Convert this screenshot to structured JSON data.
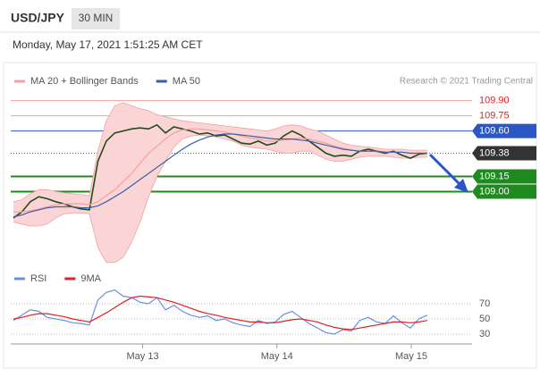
{
  "header": {
    "symbol": "USD/JPY",
    "timeframe": "30 MIN",
    "timestamp": "Monday, May 17, 2021 1:51:25 AM CET"
  },
  "chart_data": [
    {
      "type": "line",
      "credit": "Research © 2021 Trading Central",
      "xlim": [
        -0.32,
        54.3
      ],
      "xticks": [
        {
          "value": 15.3,
          "label": "May 13"
        },
        {
          "value": 31.2,
          "label": "May 14"
        },
        {
          "value": 47.1,
          "label": "May 15"
        }
      ],
      "ylim": [
        108.36,
        110.02
      ],
      "series": [
        {
          "color": "#1e4d1e",
          "values": [
            108.74,
            108.8,
            108.9,
            108.95,
            108.93,
            108.9,
            108.88,
            108.85,
            108.83,
            108.82,
            109.3,
            109.5,
            109.58,
            109.6,
            109.62,
            109.63,
            109.62,
            109.66,
            109.58,
            109.64,
            109.62,
            109.6,
            109.57,
            109.58,
            109.55,
            109.56,
            109.52,
            109.48,
            109.47,
            109.5,
            109.46,
            109.48,
            109.55,
            109.6,
            109.56,
            109.5,
            109.44,
            109.38,
            109.35,
            109.36,
            109.35,
            109.4,
            109.42,
            109.4,
            109.38,
            109.4,
            109.36,
            109.33,
            109.37,
            109.38
          ]
        },
        {
          "name": "MA 20 + Bollinger Bands",
          "color": "#f4a0a0",
          "band_color": "#fbd5d5",
          "values": [
            108.8,
            108.8,
            108.81,
            108.83,
            108.85,
            108.87,
            108.88,
            108.88,
            108.88,
            108.87,
            108.9,
            108.96,
            109.02,
            109.1,
            109.18,
            109.28,
            109.38,
            109.45,
            109.52,
            109.58,
            109.61,
            109.62,
            109.62,
            109.61,
            109.6,
            109.59,
            109.57,
            109.55,
            109.53,
            109.52,
            109.5,
            109.5,
            109.51,
            109.52,
            109.53,
            109.52,
            109.5,
            109.48,
            109.45,
            109.43,
            109.41,
            109.4,
            109.4,
            109.4,
            109.39,
            109.39,
            109.39,
            109.38,
            109.38,
            109.38
          ],
          "upper": [
            108.9,
            108.92,
            108.98,
            109.02,
            109.02,
            109,
            108.99,
            108.98,
            108.97,
            108.96,
            109.4,
            109.7,
            109.85,
            109.88,
            109.85,
            109.82,
            109.8,
            109.76,
            109.74,
            109.72,
            109.7,
            109.69,
            109.68,
            109.67,
            109.66,
            109.65,
            109.64,
            109.63,
            109.62,
            109.61,
            109.6,
            109.62,
            109.65,
            109.66,
            109.65,
            109.62,
            109.6,
            109.56,
            109.52,
            109.48,
            109.46,
            109.45,
            109.44,
            109.43,
            109.42,
            109.42,
            109.42,
            109.41,
            109.41,
            109.41
          ],
          "lower": [
            108.7,
            108.68,
            108.66,
            108.66,
            108.68,
            108.74,
            108.78,
            108.79,
            108.79,
            108.78,
            108.45,
            108.3,
            108.3,
            108.35,
            108.5,
            108.7,
            108.95,
            109.15,
            109.3,
            109.44,
            109.52,
            109.55,
            109.56,
            109.55,
            109.54,
            109.52,
            109.5,
            109.46,
            109.44,
            109.43,
            109.42,
            109.4,
            109.38,
            109.38,
            109.4,
            109.4,
            109.36,
            109.32,
            109.3,
            109.3,
            109.32,
            109.34,
            109.35,
            109.35,
            109.35,
            109.34,
            109.33,
            109.33,
            109.34,
            109.34
          ]
        },
        {
          "name": "MA 50",
          "color": "#3b5ea8",
          "values": [
            108.75,
            108.77,
            108.8,
            108.82,
            108.84,
            108.85,
            108.85,
            108.85,
            108.84,
            108.84,
            108.86,
            108.9,
            108.95,
            109,
            109.06,
            109.12,
            109.18,
            109.24,
            109.3,
            109.36,
            109.42,
            109.47,
            109.51,
            109.54,
            109.56,
            109.57,
            109.57,
            109.56,
            109.55,
            109.54,
            109.53,
            109.52,
            109.52,
            109.52,
            109.51,
            109.5,
            109.48,
            109.46,
            109.44,
            109.42,
            109.41,
            109.4,
            109.4,
            109.4,
            109.39,
            109.39,
            109.39,
            109.38,
            109.38,
            109.38
          ]
        }
      ],
      "levels": [
        {
          "value": 109.9,
          "label": "109.90",
          "color": "#f4a0a0",
          "text_color": "#e02020",
          "style": "text"
        },
        {
          "value": 109.75,
          "label": "109.75",
          "color": "#f4a0a0",
          "text_color": "#e02020",
          "style": "text"
        },
        {
          "value": 109.6,
          "label": "109.60",
          "color": "#2a56c6",
          "text_color": "#ffffff",
          "style": "box"
        },
        {
          "value": 109.38,
          "label": "109.38",
          "color": "#333333",
          "text_color": "#ffffff",
          "style": "dotted-box"
        },
        {
          "value": 109.15,
          "label": "109.15",
          "color": "#1f8a1f",
          "text_color": "#ffffff",
          "style": "box"
        },
        {
          "value": 109,
          "label": "109.00",
          "color": "#1f8a1f",
          "text_color": "#ffffff",
          "style": "box"
        }
      ]
    },
    {
      "type": "line",
      "xlim": [
        -0.32,
        54.3
      ],
      "ylim": [
        20,
        92
      ],
      "yticks": [
        70,
        50,
        30
      ],
      "grid": "dotted",
      "series": [
        {
          "name": "RSI",
          "color": "#6b8fe0",
          "values": [
            48,
            55,
            62,
            60,
            52,
            50,
            48,
            45,
            44,
            42,
            75,
            85,
            88,
            80,
            78,
            72,
            70,
            78,
            62,
            68,
            60,
            55,
            52,
            54,
            48,
            50,
            45,
            42,
            40,
            48,
            44,
            46,
            56,
            60,
            52,
            44,
            38,
            32,
            30,
            36,
            34,
            48,
            52,
            46,
            44,
            54,
            45,
            38,
            50,
            55
          ]
        },
        {
          "name": "9MA",
          "color": "#e02020",
          "values": [
            50,
            52,
            55,
            57,
            57,
            55,
            53,
            50,
            48,
            46,
            52,
            58,
            65,
            72,
            78,
            80,
            79,
            78,
            75,
            72,
            68,
            64,
            60,
            57,
            55,
            52,
            50,
            48,
            46,
            46,
            45,
            45,
            47,
            49,
            50,
            48,
            46,
            42,
            39,
            37,
            36,
            38,
            40,
            42,
            44,
            46,
            46,
            45,
            46,
            48
          ]
        }
      ]
    }
  ]
}
